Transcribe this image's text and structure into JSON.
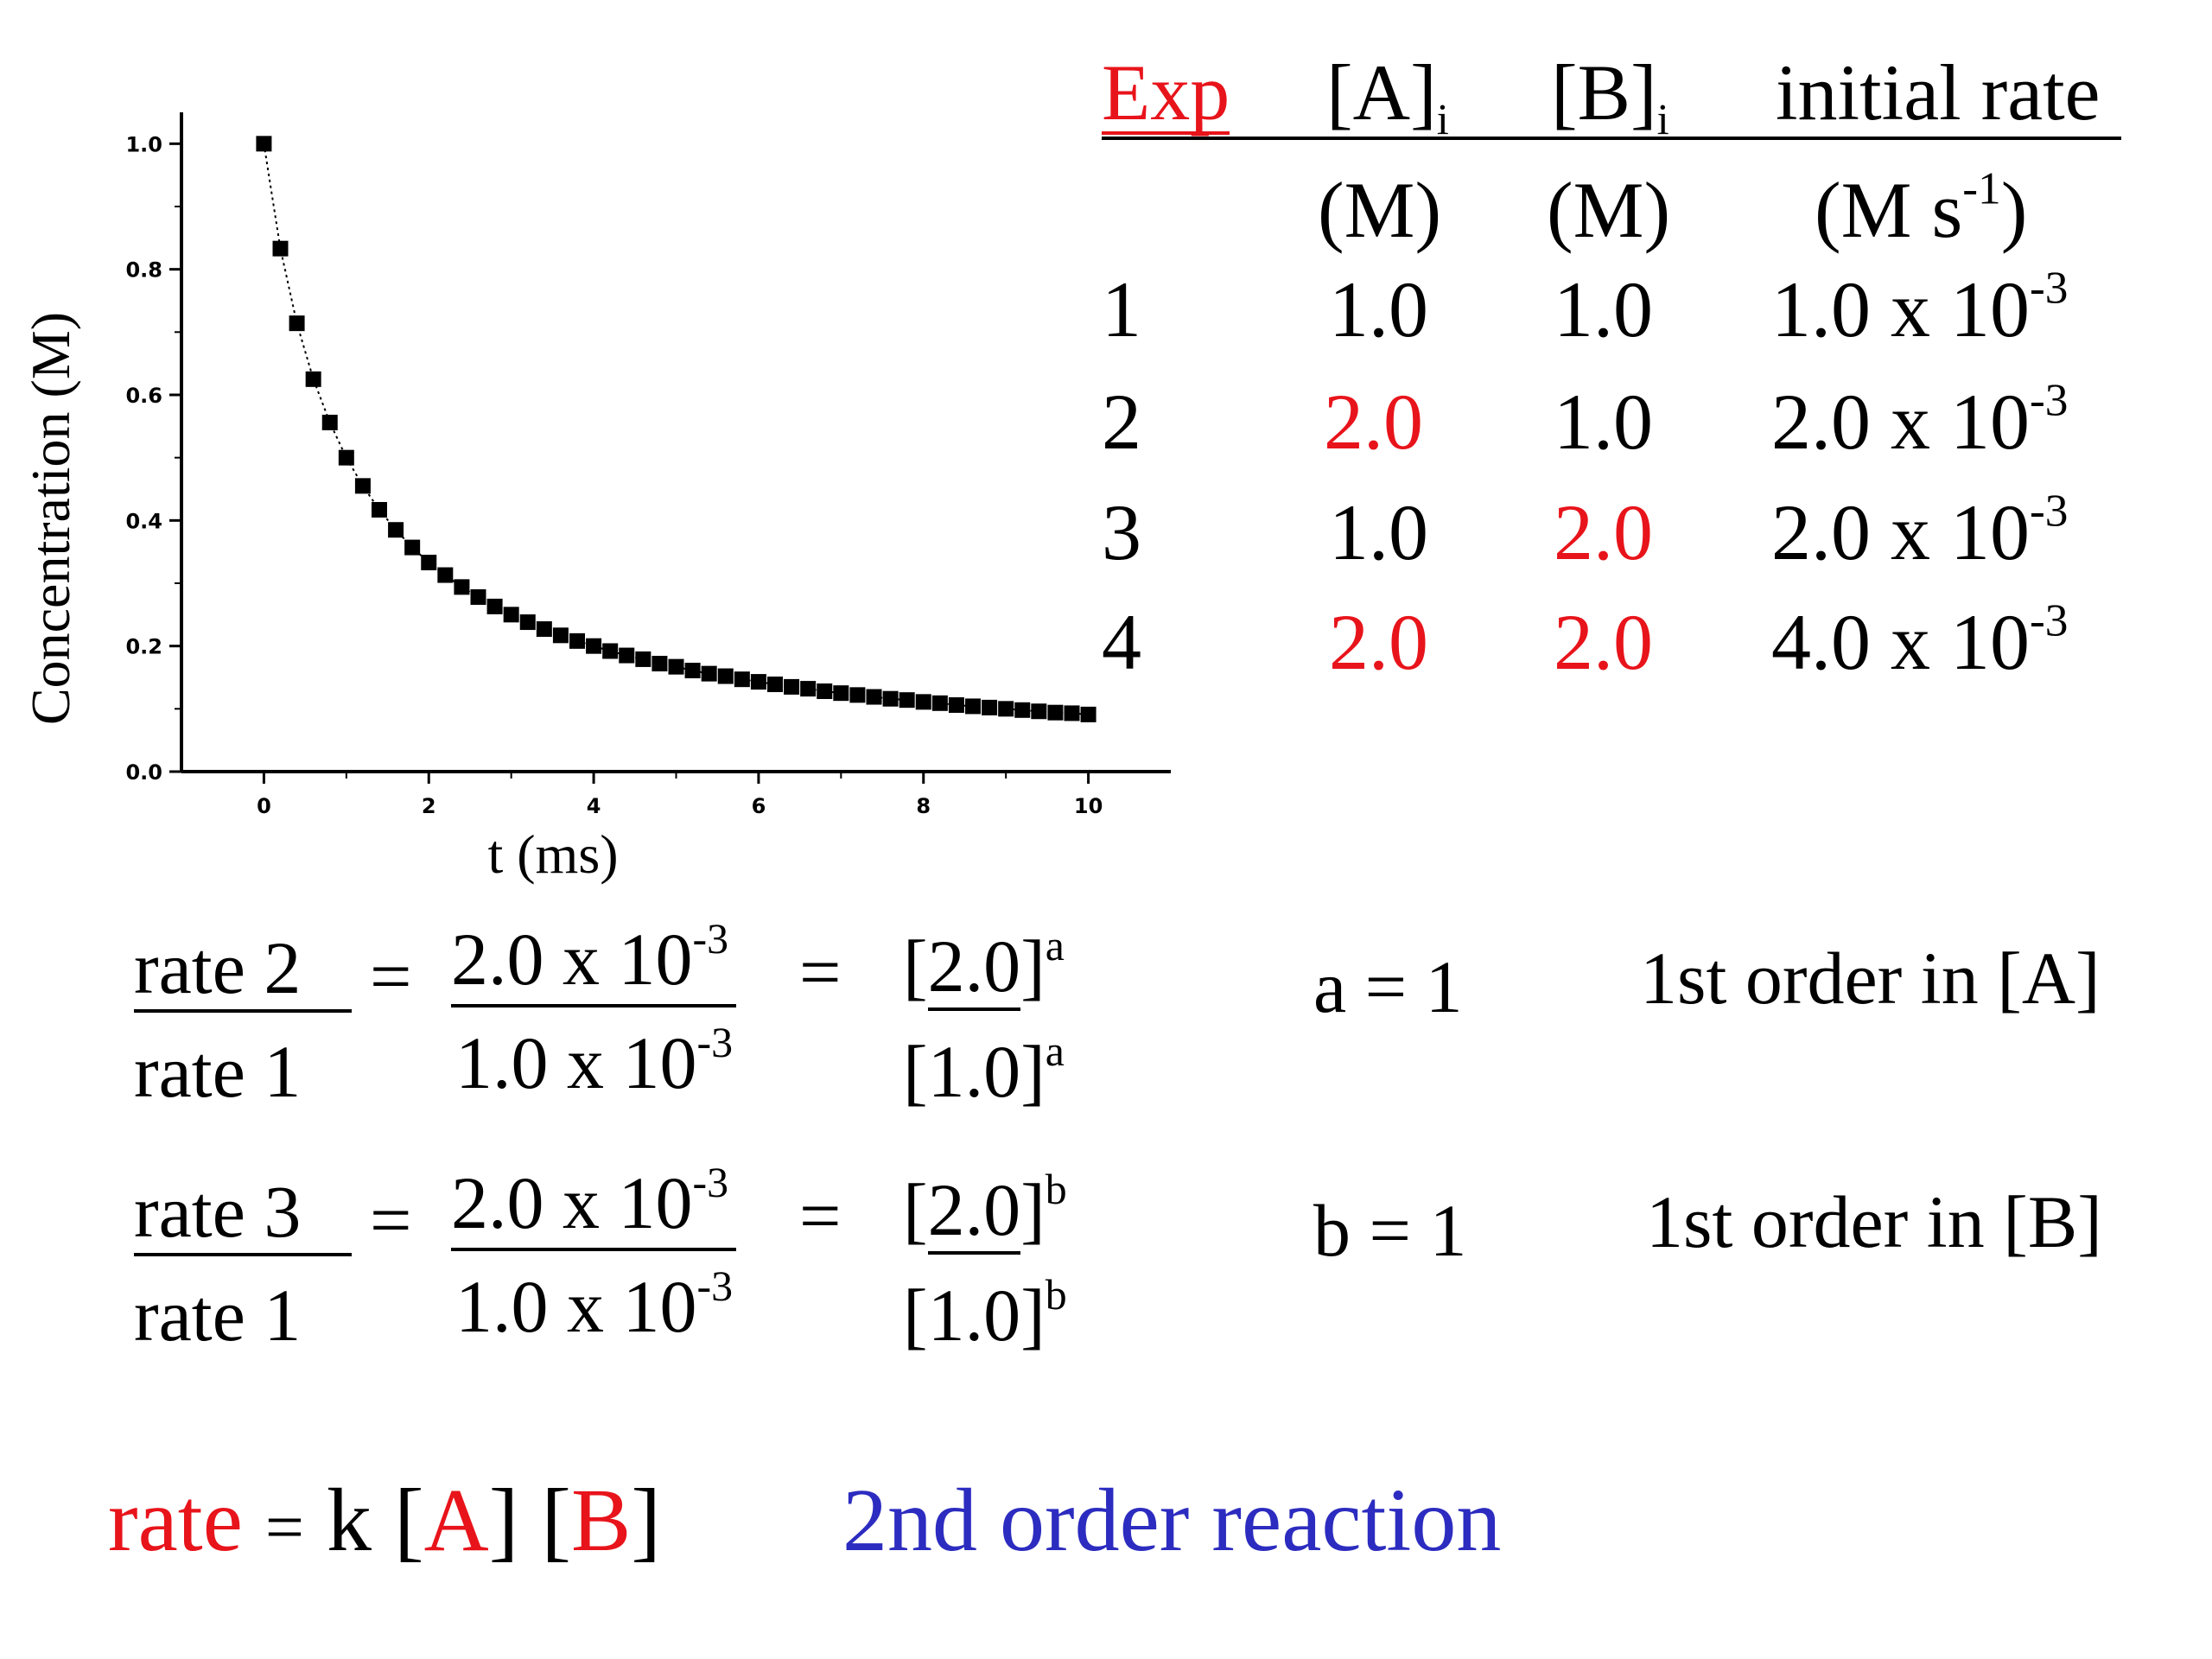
{
  "chart_data": {
    "type": "scatter",
    "xlabel": "t (ms)",
    "ylabel": "Concentration (M)",
    "xlim": [
      -1,
      11
    ],
    "ylim": [
      0,
      1.05
    ],
    "xticks": [
      "0",
      "2",
      "4",
      "6",
      "8",
      "10"
    ],
    "yticks": [
      "0.0",
      "0.2",
      "0.4",
      "0.6",
      "0.8",
      "1.0"
    ],
    "x": [
      0,
      0.2,
      0.4,
      0.6,
      0.8,
      1.0,
      1.2,
      1.4,
      1.6,
      1.8,
      2.0,
      2.2,
      2.4,
      2.6,
      2.8,
      3.0,
      3.2,
      3.4,
      3.6,
      3.8,
      4.0,
      4.2,
      4.4,
      4.6,
      4.8,
      5.0,
      5.2,
      5.4,
      5.6,
      5.8,
      6.0,
      6.2,
      6.4,
      6.6,
      6.8,
      7.0,
      7.2,
      7.4,
      7.6,
      7.8,
      8.0,
      8.2,
      8.4,
      8.6,
      8.8,
      9.0,
      9.2,
      9.4,
      9.6,
      9.8,
      10.0
    ],
    "y": [
      1.0,
      0.833,
      0.714,
      0.625,
      0.556,
      0.5,
      0.455,
      0.417,
      0.385,
      0.357,
      0.333,
      0.313,
      0.294,
      0.278,
      0.263,
      0.25,
      0.238,
      0.227,
      0.217,
      0.208,
      0.2,
      0.192,
      0.185,
      0.179,
      0.172,
      0.167,
      0.161,
      0.156,
      0.152,
      0.147,
      0.143,
      0.139,
      0.135,
      0.132,
      0.128,
      0.125,
      0.122,
      0.119,
      0.116,
      0.114,
      0.111,
      0.109,
      0.106,
      0.104,
      0.102,
      0.1,
      0.098,
      0.096,
      0.094,
      0.093,
      0.091
    ]
  },
  "table": {
    "headers": [
      "Exp",
      "[A]",
      "i",
      "[B]",
      "i",
      "initial rate"
    ],
    "units": [
      "(M)",
      "(M)",
      "(M s",
      "-1",
      ")"
    ],
    "rows": [
      {
        "exp": "1",
        "a": "1.0",
        "b": "1.0",
        "rate": "1.0 x 10",
        "exp10": "-3"
      },
      {
        "exp": "2",
        "a": "2.0",
        "b": "1.0",
        "rate": "2.0 x 10",
        "exp10": "-3"
      },
      {
        "exp": "3",
        "a": "1.0",
        "b": "2.0",
        "rate": "2.0 x 10",
        "exp10": "-3"
      },
      {
        "exp": "4",
        "a": "2.0",
        "b": "2.0",
        "rate": "4.0 x 10",
        "exp10": "-3"
      }
    ]
  },
  "ratio1": {
    "num_label": "rate 2",
    "den_label": "rate 1",
    "eq": "=",
    "num_value": "2.0 x 10",
    "num_exp": "-3",
    "den_value": "1.0 x 10",
    "den_exp": "-3",
    "eq2": "=",
    "num_conc": "2.0",
    "den_conc": "1.0",
    "power": "a",
    "result": "a = 1",
    "order": "1st order in [A]"
  },
  "ratio2": {
    "num_label": "rate 3",
    "den_label": "rate 1",
    "eq": "=",
    "num_value": "2.0 x 10",
    "num_exp": "-3",
    "den_value": "1.0 x 10",
    "den_exp": "-3",
    "eq2": "=",
    "num_conc": "2.0",
    "den_conc": "1.0",
    "power": "b",
    "result": "b = 1",
    "order": "1st order in [B]"
  },
  "law": {
    "rate": "rate",
    "eq": "=",
    "k": "k [",
    "a": "A",
    "mid": "] [",
    "b": "B",
    "end": "]",
    "note": "2nd order reaction"
  },
  "colors": {
    "red": "#e8141b",
    "blue": "#2c2cc0",
    "black": "#000000"
  }
}
